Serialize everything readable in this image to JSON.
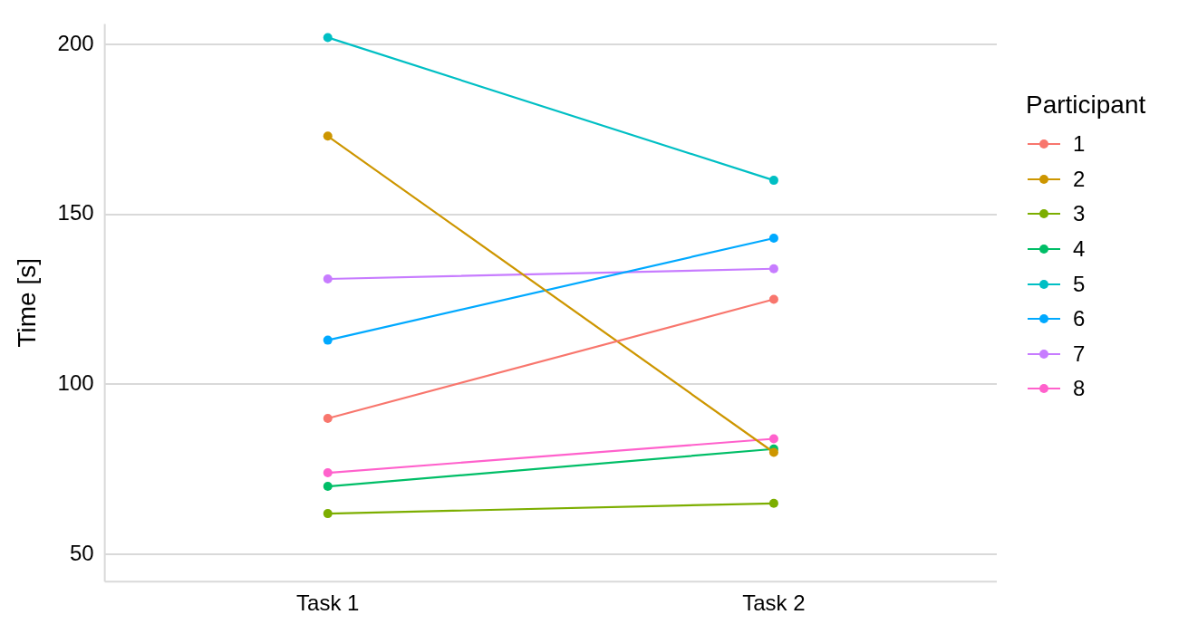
{
  "chart_data": {
    "type": "line",
    "ylabel": "Time [s]",
    "legend_title": "Participant",
    "categories": [
      "Task 1",
      "Task 2"
    ],
    "series": [
      {
        "name": "1",
        "color": "#f8766d",
        "values": [
          90,
          125
        ]
      },
      {
        "name": "2",
        "color": "#cd9600",
        "values": [
          173,
          80
        ]
      },
      {
        "name": "3",
        "color": "#7cae00",
        "values": [
          62,
          65
        ]
      },
      {
        "name": "4",
        "color": "#00be67",
        "values": [
          70,
          81
        ]
      },
      {
        "name": "5",
        "color": "#00bfc4",
        "values": [
          202,
          160
        ]
      },
      {
        "name": "6",
        "color": "#00a9ff",
        "values": [
          113,
          143
        ]
      },
      {
        "name": "7",
        "color": "#c77cff",
        "values": [
          131,
          134
        ]
      },
      {
        "name": "8",
        "color": "#ff61cc",
        "values": [
          74,
          84
        ]
      }
    ],
    "ylim": [
      42,
      206
    ],
    "yticks": [
      50,
      100,
      150,
      200
    ],
    "grid": "y",
    "legend": "right",
    "marker": "circle",
    "line_style": "solid"
  }
}
